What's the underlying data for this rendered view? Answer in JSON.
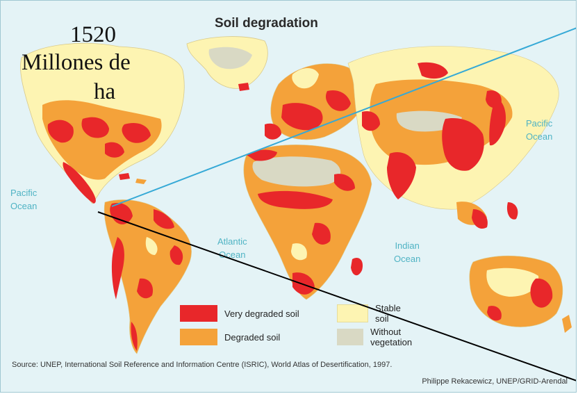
{
  "map": {
    "title": "Soil degradation",
    "stat_overlay": {
      "line1": "1520",
      "line2": "Millones de",
      "line3": "ha"
    },
    "oceans": {
      "pacific_west": {
        "line1": "Pacific",
        "line2": "Ocean"
      },
      "atlantic": {
        "line1": "Atlantic",
        "line2": "Ocean"
      },
      "indian": {
        "line1": "Indian",
        "line2": "Ocean"
      },
      "pacific_east": {
        "line1": "Pacific",
        "line2": "Ocean"
      }
    },
    "legend": [
      {
        "label": "Very degraded soil",
        "color": "#e8272a"
      },
      {
        "label": "Degraded soil",
        "color": "#f4a23a"
      },
      {
        "label": "Stable soil",
        "color": "#fdf4b2"
      },
      {
        "label": "Without vegetation",
        "color": "#d9d9c4"
      }
    ],
    "source": "Source: UNEP, International Soil Reference and Information Centre (ISRIC), World Atlas of Desertification, 1997.",
    "credit": "Philippe Rekacewicz, UNEP/GRID-Arendal",
    "colors": {
      "ocean": "#e4f3f6",
      "very_degraded": "#e8272a",
      "degraded": "#f4a23a",
      "stable": "#fdf4b2",
      "without_vegetation": "#d9d9c4",
      "pointer_blue": "#35a9d6",
      "pointer_black": "#000000"
    }
  }
}
